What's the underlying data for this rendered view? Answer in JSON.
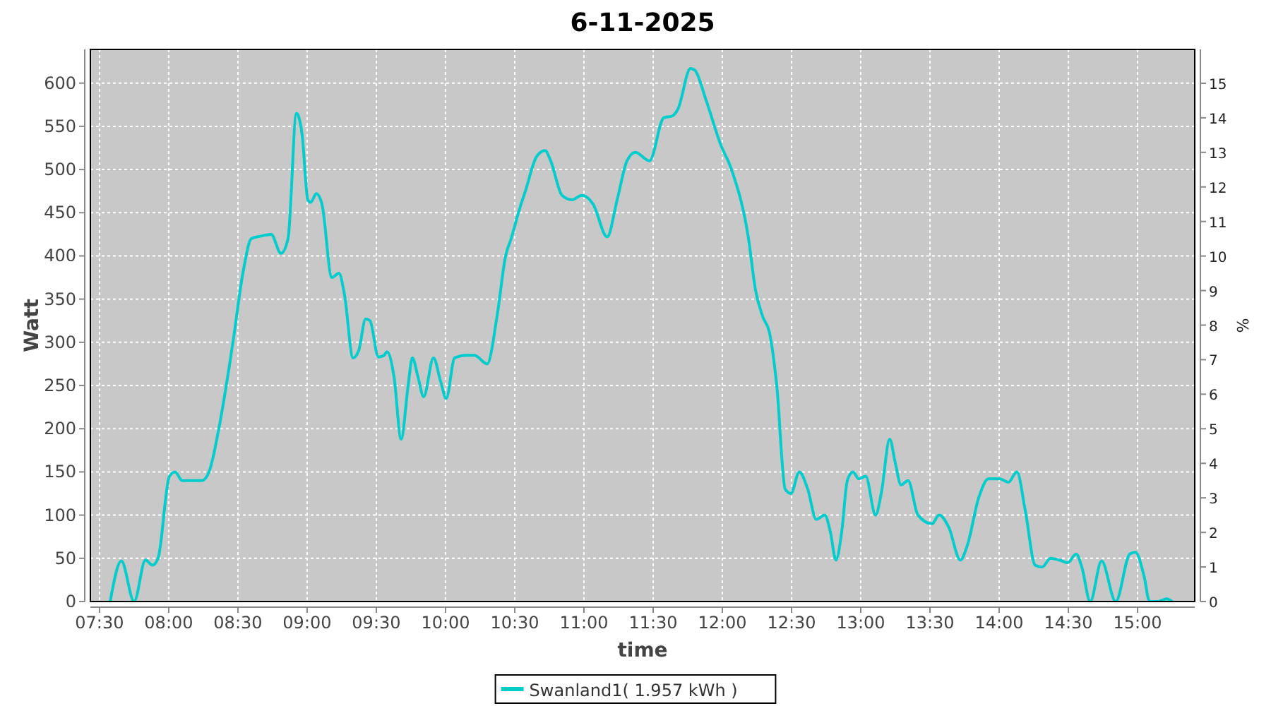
{
  "chart_data": {
    "type": "line",
    "title": "6-11-2025",
    "xlabel": "time",
    "ylabel": "Watt",
    "y2label": "%",
    "xlim": [
      7.434,
      15.413
    ],
    "ylim": [
      0,
      639
    ],
    "y2lim": [
      0,
      15.98
    ],
    "xticks": [
      {
        "value": 7.5,
        "label": "07:30"
      },
      {
        "value": 8,
        "label": "08:00"
      },
      {
        "value": 8.5,
        "label": "08:30"
      },
      {
        "value": 9,
        "label": "09:00"
      },
      {
        "value": 9.5,
        "label": "09:30"
      },
      {
        "value": 10,
        "label": "10:00"
      },
      {
        "value": 10.5,
        "label": "10:30"
      },
      {
        "value": 11,
        "label": "11:00"
      },
      {
        "value": 11.5,
        "label": "11:30"
      },
      {
        "value": 12,
        "label": "12:00"
      },
      {
        "value": 12.5,
        "label": "12:30"
      },
      {
        "value": 13,
        "label": "13:00"
      },
      {
        "value": 13.5,
        "label": "13:30"
      },
      {
        "value": 14,
        "label": "14:00"
      },
      {
        "value": 14.5,
        "label": "14:30"
      },
      {
        "value": 15,
        "label": "15:00"
      }
    ],
    "yticks": [
      0,
      50,
      100,
      150,
      200,
      250,
      300,
      350,
      400,
      450,
      500,
      550,
      600
    ],
    "y2ticks": [
      0,
      1,
      2,
      3,
      4,
      5,
      6,
      7,
      8,
      9,
      10,
      11,
      12,
      13,
      14,
      15
    ],
    "grid": true,
    "legend": "bottom",
    "marker": "none",
    "line_style": "solid",
    "series": [
      {
        "name": "Swanland1( 1.957 kWh )",
        "color": "#00cccc",
        "x": [
          7.577,
          7.658,
          7.75,
          7.832,
          7.883,
          7.923,
          8.005,
          8.046,
          8.097,
          8.158,
          8.24,
          8.291,
          8.362,
          8.464,
          8.536,
          8.597,
          8.668,
          8.74,
          8.811,
          8.862,
          8.923,
          8.964,
          9.005,
          9.026,
          9.066,
          9.107,
          9.179,
          9.23,
          9.27,
          9.332,
          9.372,
          9.423,
          9.454,
          9.515,
          9.556,
          9.577,
          9.628,
          9.679,
          9.73,
          9.76,
          9.801,
          9.842,
          9.913,
          9.964,
          10.005,
          10.066,
          10.148,
          10.209,
          10.301,
          10.372,
          10.434,
          10.474,
          10.536,
          10.577,
          10.658,
          10.719,
          10.76,
          10.842,
          10.913,
          10.985,
          11.066,
          11.168,
          11.24,
          11.311,
          11.372,
          11.474,
          11.577,
          11.638,
          11.679,
          11.77,
          11.801,
          11.883,
          11.985,
          12.066,
          12.189,
          12.24,
          12.291,
          12.342,
          12.393,
          12.454,
          12.495,
          12.556,
          12.617,
          12.679,
          12.74,
          12.781,
          12.821,
          12.862,
          12.903,
          12.944,
          12.985,
          13.036,
          13.107,
          13.148,
          13.209,
          13.25,
          13.291,
          13.342,
          13.413,
          13.515,
          13.566,
          13.638,
          13.719,
          13.77,
          13.852,
          13.923,
          14.005,
          14.066,
          14.128,
          14.189,
          14.26,
          14.311,
          14.372,
          14.434,
          14.495,
          14.556,
          14.597,
          14.658,
          14.74,
          14.842,
          14.944,
          14.985,
          15.046,
          15.087,
          15.148,
          15.209,
          15.25
        ],
        "values": [
          0,
          47,
          0,
          48,
          42,
          50,
          145,
          150,
          140,
          140,
          140,
          150,
          200,
          300,
          380,
          420,
          423,
          425,
          403,
          420,
          565,
          540,
          465,
          462,
          472,
          460,
          375,
          380,
          355,
          282,
          290,
          327,
          325,
          283,
          285,
          289,
          260,
          188,
          250,
          282,
          260,
          237,
          282,
          255,
          235,
          282,
          285,
          285,
          275,
          330,
          400,
          420,
          455,
          475,
          515,
          522,
          510,
          470,
          465,
          470,
          460,
          422,
          465,
          510,
          520,
          510,
          560,
          562,
          570,
          617,
          615,
          580,
          530,
          500,
          420,
          360,
          330,
          310,
          250,
          130,
          125,
          150,
          130,
          95,
          100,
          80,
          48,
          80,
          140,
          150,
          142,
          145,
          100,
          125,
          188,
          160,
          135,
          140,
          100,
          90,
          100,
          85,
          48,
          65,
          120,
          142,
          142,
          138,
          150,
          105,
          42,
          40,
          50,
          48,
          45,
          55,
          40,
          0,
          47,
          0,
          55,
          57,
          30,
          0,
          0,
          3,
          0
        ]
      }
    ]
  }
}
